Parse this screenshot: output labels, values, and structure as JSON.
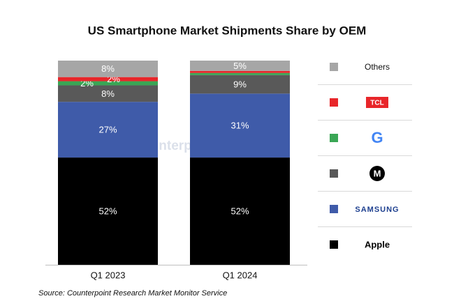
{
  "chart_data": {
    "type": "stacked_bar",
    "title": "US Smartphone Market Shipments Share by OEM",
    "categories": [
      "Q1 2023",
      "Q1 2024"
    ],
    "series": [
      {
        "name": "Apple",
        "color": "#000000",
        "values": [
          52,
          52
        ],
        "value_labels": [
          "52%",
          "52%"
        ]
      },
      {
        "name": "SAMSUNG",
        "color": "#3f5ba9",
        "values": [
          27,
          31
        ],
        "value_labels": [
          "27%",
          "31%"
        ]
      },
      {
        "name": "M",
        "color": "#595959",
        "values": [
          8,
          9
        ],
        "value_labels": [
          "8%",
          "9%"
        ]
      },
      {
        "name": "G",
        "color": "#3aa655",
        "values": [
          2,
          1
        ],
        "value_labels": [
          "2%",
          null
        ]
      },
      {
        "name": "TCL",
        "color": "#e8262a",
        "values": [
          2,
          1
        ],
        "value_labels": [
          "2%",
          null
        ]
      },
      {
        "name": "Others",
        "color": "#a6a6a6",
        "values": [
          8,
          5
        ],
        "value_labels": [
          "8%",
          "5%"
        ]
      }
    ],
    "ylim": [
      0,
      100
    ],
    "watermark": "Counterpoint",
    "source": "Source: Counterpoint Research Market Monitor Service"
  }
}
